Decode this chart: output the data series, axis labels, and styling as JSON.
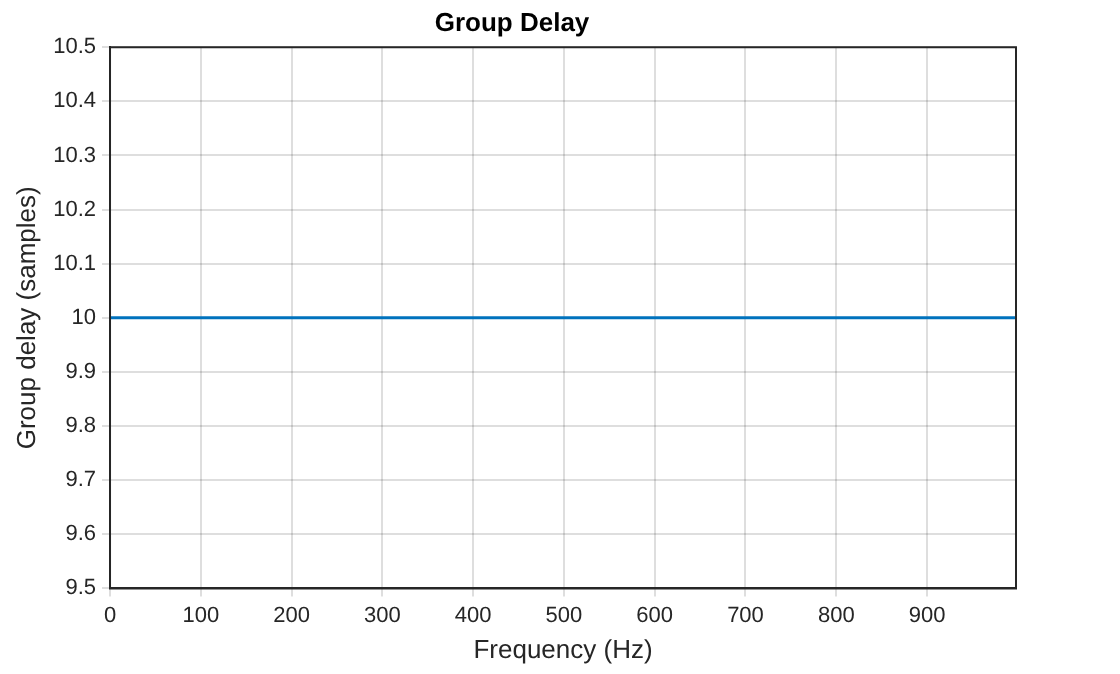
{
  "chart_data": {
    "type": "line",
    "title": "Group Delay",
    "xlabel": "Frequency (Hz)",
    "ylabel": "Group delay (samples)",
    "x": [
      0,
      998
    ],
    "series": [
      {
        "color": "#0072bd",
        "values": [
          10,
          10
        ]
      }
    ],
    "xlim": [
      0,
      998
    ],
    "xticks": [
      0,
      100,
      200,
      300,
      400,
      500,
      600,
      700,
      800,
      900
    ],
    "ylim": [
      9.5,
      10.5
    ],
    "yticks": [
      9.5,
      9.6,
      9.7,
      9.8,
      9.9,
      10,
      10.1,
      10.2,
      10.3,
      10.4,
      10.5
    ],
    "grid": true,
    "legend": false,
    "marker": "none",
    "line_style": "solid"
  }
}
